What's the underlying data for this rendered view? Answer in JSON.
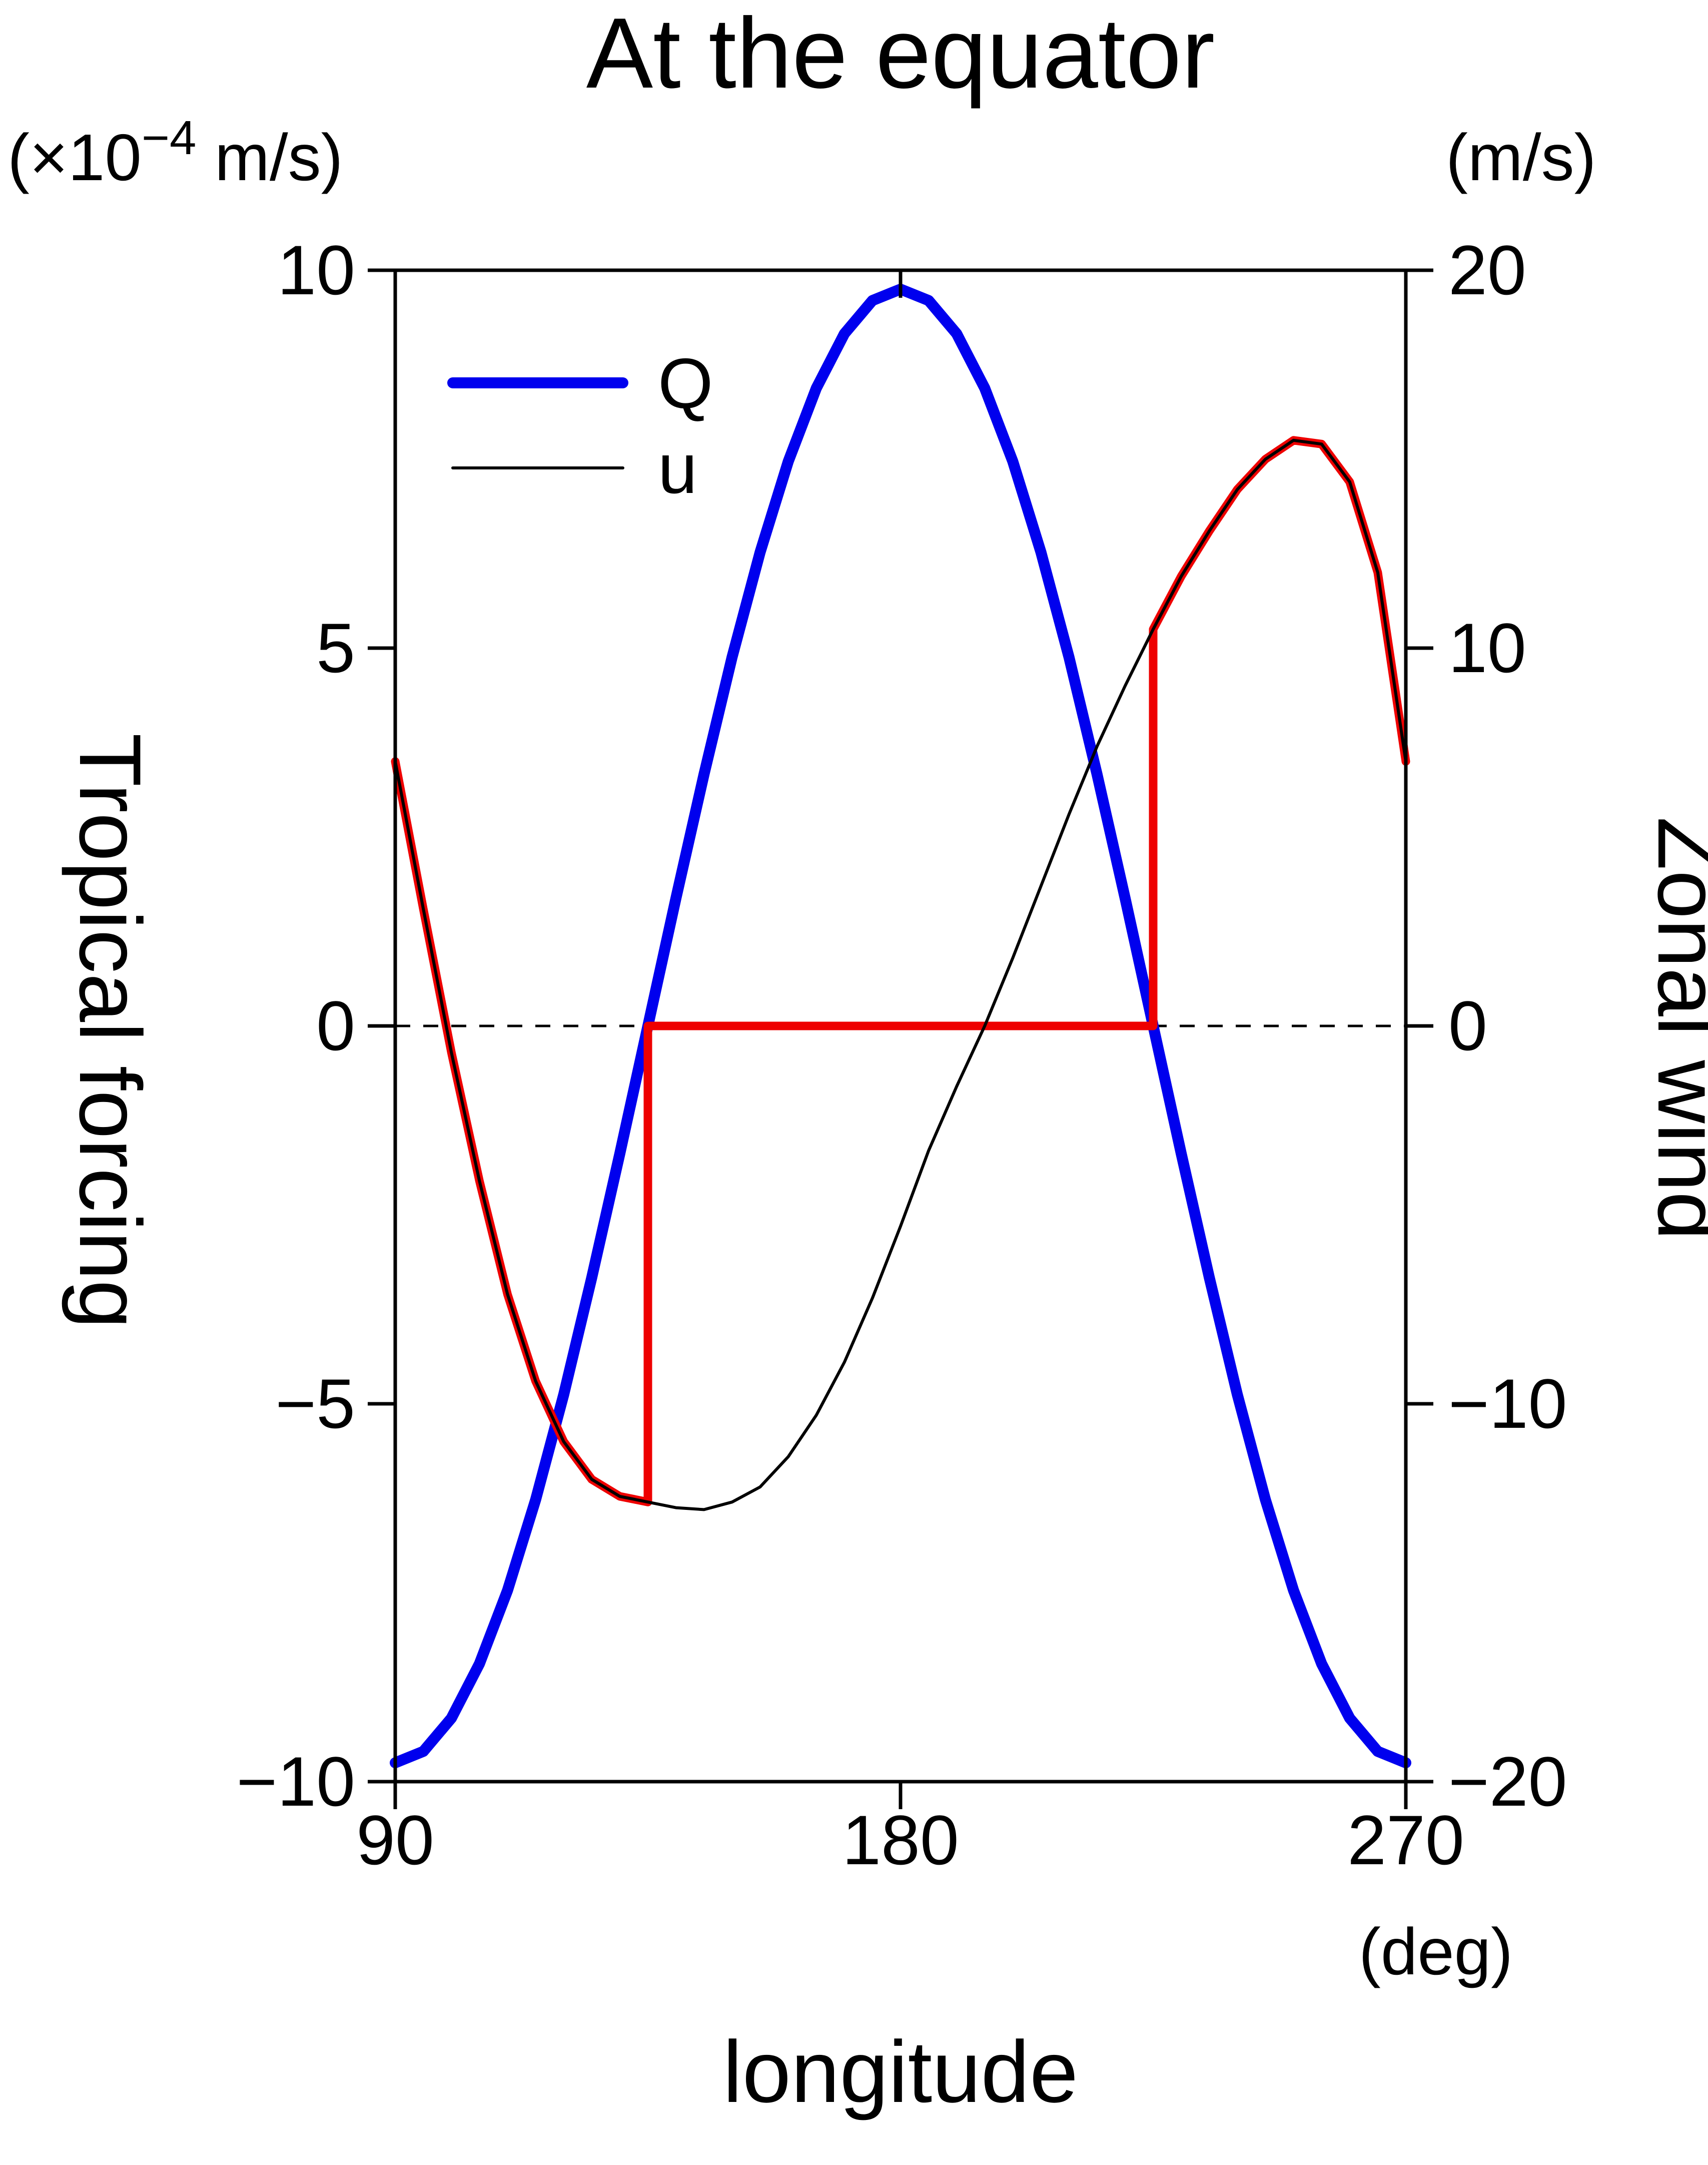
{
  "chart_data": {
    "type": "line",
    "title": "At the equator",
    "xlabel": "longitude",
    "x_unit": "(deg)",
    "xlim": [
      90,
      270
    ],
    "x_ticks": [
      90,
      180,
      270
    ],
    "x_tick_labels": [
      "90",
      "180",
      "270"
    ],
    "top_ticks": [
      180
    ],
    "left_axis": {
      "label": "Tropical forcing",
      "unit_parts": {
        "pre": "(×10",
        "sup": "−4",
        "post": " m/s)"
      },
      "lim": [
        -10,
        10
      ],
      "ticks": [
        10,
        5,
        0,
        -5,
        -10
      ],
      "tick_labels": [
        "10",
        "5",
        "0",
        "−5",
        "−10"
      ]
    },
    "right_axis": {
      "label": "Zonal wind",
      "unit": "(m/s)",
      "lim": [
        -20,
        20
      ],
      "ticks": [
        20,
        10,
        0,
        -10,
        -20
      ],
      "tick_labels": [
        "20",
        "10",
        "0",
        "−10",
        "−20"
      ]
    },
    "zero_line": {
      "value": 0,
      "style": "dashed",
      "color": "#000000"
    },
    "legend": [
      {
        "label": "Q",
        "color": "#0000ee",
        "width": 22
      },
      {
        "label": "u",
        "color": "#000000",
        "width": 6
      }
    ],
    "series": [
      {
        "name": "Q",
        "axis": "left",
        "color": "#0000ee",
        "width": 22,
        "x": [
          90,
          95,
          100,
          105,
          110,
          115,
          120,
          125,
          130,
          135,
          140,
          145,
          150,
          155,
          160,
          165,
          170,
          175,
          180,
          185,
          190,
          195,
          200,
          205,
          210,
          215,
          220,
          225,
          230,
          235,
          240,
          245,
          250,
          255,
          260,
          265,
          270
        ],
        "y": [
          -9.75,
          -9.6,
          -9.16,
          -8.44,
          -7.47,
          -6.27,
          -4.88,
          -3.33,
          -1.69,
          0,
          1.69,
          3.33,
          4.88,
          6.27,
          7.47,
          8.44,
          9.16,
          9.6,
          9.75,
          9.6,
          9.16,
          8.44,
          7.47,
          6.27,
          4.88,
          3.33,
          1.69,
          0,
          -1.69,
          -3.33,
          -4.88,
          -6.27,
          -7.47,
          -8.44,
          -9.16,
          -9.6,
          -9.75
        ]
      },
      {
        "name": "u red segments",
        "axis": "right",
        "color": "#ee0000",
        "width": 17,
        "x": [
          90,
          95,
          100,
          105,
          110,
          115,
          120,
          125,
          130,
          135,
          135,
          225,
          225,
          230,
          235,
          240,
          245,
          250,
          255,
          260,
          265,
          270
        ],
        "y": [
          7.0,
          3.1,
          -0.7,
          -4.1,
          -7.1,
          -9.4,
          -11.0,
          -12.0,
          -12.45,
          -12.6,
          0,
          0,
          10.5,
          11.9,
          13.1,
          14.2,
          15.0,
          15.5,
          15.4,
          14.4,
          12.0,
          7.0
        ]
      },
      {
        "name": "u",
        "axis": "right",
        "color": "#000000",
        "width": 6,
        "x": [
          90,
          95,
          100,
          105,
          110,
          115,
          120,
          125,
          130,
          135,
          140,
          145,
          150,
          155,
          160,
          165,
          170,
          175,
          180,
          185,
          190,
          195,
          200,
          205,
          210,
          215,
          220,
          225,
          230,
          235,
          240,
          245,
          250,
          255,
          260,
          265,
          270
        ],
        "y": [
          7.0,
          3.1,
          -0.7,
          -4.1,
          -7.1,
          -9.4,
          -11.0,
          -12.0,
          -12.45,
          -12.6,
          -12.75,
          -12.8,
          -12.6,
          -12.2,
          -11.4,
          -10.3,
          -8.9,
          -7.2,
          -5.3,
          -3.3,
          -1.6,
          0.0,
          1.8,
          3.7,
          5.6,
          7.4,
          9.0,
          10.5,
          11.9,
          13.1,
          14.2,
          15.0,
          15.5,
          15.4,
          14.4,
          12.0,
          7.0
        ]
      }
    ]
  }
}
